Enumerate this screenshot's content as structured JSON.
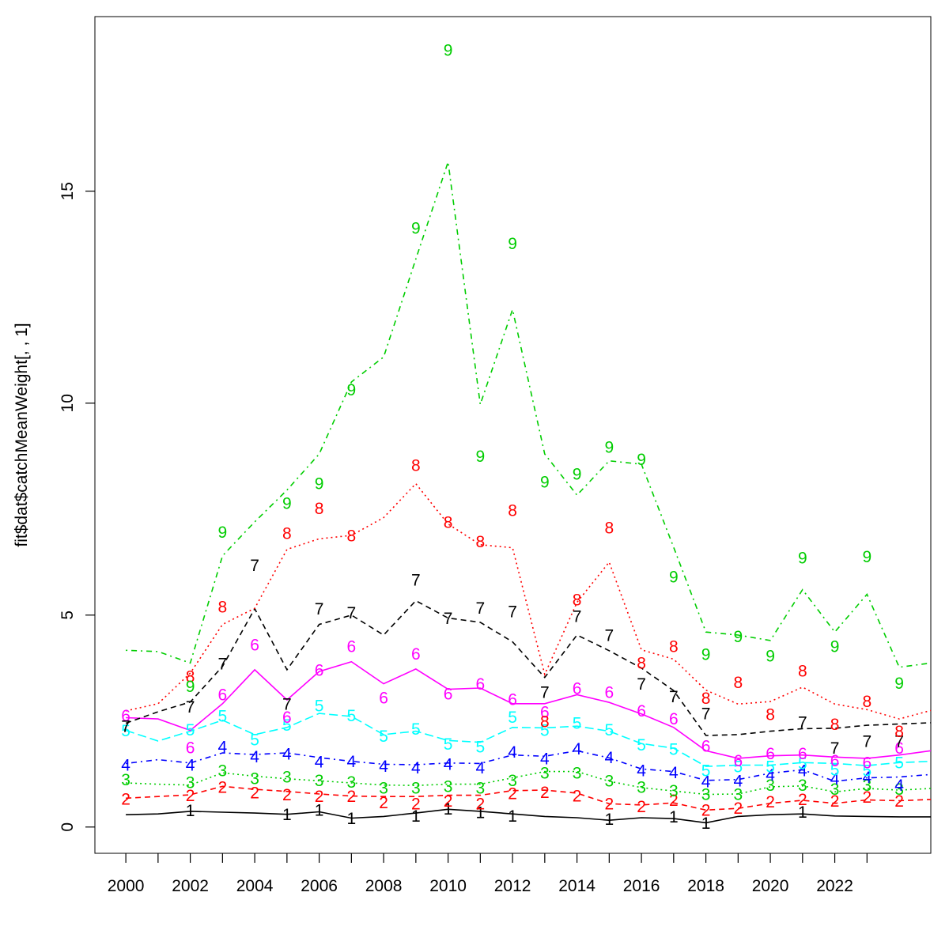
{
  "chart_data": {
    "type": "line",
    "title": "",
    "xlabel": "",
    "ylabel": "fit$dat$catchMeanWeight[, , 1]",
    "grid": false,
    "legend_position": "none",
    "xlim": [
      1999.04,
      2024.98
    ],
    "ylim": [
      -0.62,
      19.12
    ],
    "y_ticks": [
      0,
      5,
      10,
      15
    ],
    "x_tick_years": [
      2000,
      2001,
      2002,
      2003,
      2004,
      2005,
      2006,
      2007,
      2008,
      2009,
      2010,
      2011,
      2012,
      2013,
      2014,
      2015,
      2016,
      2017,
      2018,
      2019,
      2020,
      2021,
      2022,
      2023
    ],
    "x_labeled_years": [
      2000,
      2002,
      2004,
      2006,
      2008,
      2010,
      2012,
      2014,
      2016,
      2018,
      2020,
      2022
    ],
    "x": [
      2000,
      2001,
      2002,
      2003,
      2004,
      2005,
      2006,
      2007,
      2008,
      2009,
      2010,
      2011,
      2012,
      2013,
      2014,
      2015,
      2016,
      2017,
      2018,
      2019,
      2020,
      2021,
      2022,
      2023,
      2024
    ],
    "series": [
      {
        "name": "age-1",
        "label": "1",
        "color": "#000000",
        "dash": "solid",
        "obs": [
          null,
          null,
          0.4,
          null,
          null,
          0.3,
          0.41,
          0.21,
          null,
          0.27,
          0.43,
          0.35,
          0.27,
          null,
          null,
          0.19,
          null,
          0.25,
          0.1,
          null,
          null,
          0.36,
          null,
          null,
          null
        ],
        "fit": [
          0.29,
          0.31,
          0.37,
          0.35,
          0.33,
          0.3,
          0.36,
          0.21,
          0.25,
          0.33,
          0.42,
          0.37,
          0.31,
          0.25,
          0.22,
          0.16,
          0.22,
          0.2,
          0.1,
          0.25,
          0.29,
          0.31,
          0.26,
          0.25,
          0.24
        ],
        "fit_edge": 0.24
      },
      {
        "name": "age-2",
        "label": "2",
        "color": "#FF0000",
        "dash": "dashed",
        "obs": [
          0.67,
          null,
          0.75,
          0.95,
          0.82,
          0.77,
          0.73,
          0.73,
          0.58,
          0.56,
          0.62,
          0.56,
          0.8,
          0.83,
          0.74,
          0.56,
          0.49,
          0.64,
          0.41,
          0.45,
          0.6,
          0.66,
          0.62,
          0.71,
          0.62
        ],
        "fit": [
          0.68,
          0.72,
          0.76,
          0.96,
          0.89,
          0.84,
          0.78,
          0.73,
          0.72,
          0.72,
          0.75,
          0.75,
          0.86,
          0.87,
          0.8,
          0.55,
          0.52,
          0.57,
          0.4,
          0.44,
          0.56,
          0.63,
          0.56,
          0.64,
          0.62
        ],
        "fit_edge": 0.65
      },
      {
        "name": "age-3",
        "label": "3",
        "color": "#00CD00",
        "dash": "dotted",
        "obs": [
          1.12,
          null,
          1.06,
          1.34,
          1.15,
          1.19,
          1.11,
          1.07,
          0.93,
          0.93,
          0.97,
          0.93,
          1.11,
          1.28,
          1.28,
          1.1,
          0.95,
          0.86,
          0.78,
          0.78,
          0.99,
          0.99,
          0.9,
          0.99,
          0.9
        ],
        "fit": [
          1.04,
          1.01,
          0.99,
          1.28,
          1.2,
          1.14,
          1.09,
          1.04,
          0.99,
          0.98,
          1.01,
          1.01,
          1.16,
          1.31,
          1.31,
          1.08,
          0.93,
          0.85,
          0.77,
          0.78,
          0.95,
          0.97,
          0.83,
          0.91,
          0.87
        ],
        "fit_edge": 0.91
      },
      {
        "name": "age-4",
        "label": "4",
        "color": "#0000FF",
        "dash": "dashdot",
        "obs": [
          1.47,
          null,
          1.47,
          1.9,
          1.67,
          1.73,
          1.54,
          1.55,
          1.44,
          1.4,
          1.49,
          1.4,
          1.78,
          1.62,
          1.85,
          1.65,
          1.34,
          1.29,
          1.08,
          1.1,
          1.24,
          1.34,
          1.14,
          1.18,
          0.99
        ],
        "fit": [
          1.5,
          1.59,
          1.51,
          1.75,
          1.71,
          1.75,
          1.64,
          1.55,
          1.48,
          1.47,
          1.51,
          1.5,
          1.7,
          1.67,
          1.8,
          1.63,
          1.37,
          1.31,
          1.1,
          1.12,
          1.27,
          1.35,
          1.08,
          1.16,
          1.18
        ],
        "fit_edge": 1.24
      },
      {
        "name": "age-5",
        "label": "5",
        "color": "#00FFFF",
        "dash": "longdash",
        "obs": [
          2.28,
          null,
          2.3,
          2.63,
          2.07,
          2.41,
          2.87,
          2.64,
          2.15,
          2.32,
          1.96,
          1.9,
          2.6,
          2.29,
          2.46,
          2.3,
          1.95,
          1.84,
          1.34,
          1.43,
          1.43,
          1.51,
          1.36,
          1.34,
          1.53
        ],
        "fit": [
          2.28,
          2.03,
          2.26,
          2.52,
          2.18,
          2.35,
          2.68,
          2.61,
          2.18,
          2.26,
          2.04,
          2.0,
          2.35,
          2.34,
          2.38,
          2.26,
          1.97,
          1.86,
          1.43,
          1.46,
          1.46,
          1.52,
          1.5,
          1.45,
          1.52
        ],
        "fit_edge": 1.55
      },
      {
        "name": "age-6",
        "label": "6",
        "color": "#FF00FF",
        "dash": "solid",
        "obs": [
          2.64,
          null,
          1.88,
          3.13,
          4.31,
          2.6,
          3.71,
          4.27,
          3.06,
          4.09,
          3.15,
          3.38,
          3.02,
          2.72,
          3.28,
          3.19,
          2.75,
          2.56,
          1.92,
          1.57,
          1.74,
          1.74,
          1.57,
          1.53,
          1.87
        ],
        "fit": [
          2.58,
          2.55,
          2.28,
          2.91,
          3.71,
          3.0,
          3.67,
          3.9,
          3.38,
          3.73,
          3.25,
          3.28,
          2.91,
          2.91,
          3.12,
          2.94,
          2.67,
          2.35,
          1.8,
          1.62,
          1.68,
          1.7,
          1.65,
          1.62,
          1.7
        ],
        "fit_edge": 1.8
      },
      {
        "name": "age-7",
        "label": "7",
        "color": "#000000",
        "dash": "dashed",
        "obs": [
          2.38,
          null,
          2.84,
          3.86,
          6.18,
          2.91,
          5.15,
          5.06,
          null,
          5.84,
          4.93,
          5.17,
          5.09,
          3.19,
          4.98,
          4.53,
          3.38,
          3.08,
          2.68,
          null,
          null,
          2.48,
          1.87,
          2.03,
          2.03
        ],
        "fit": [
          2.45,
          2.72,
          2.95,
          3.79,
          5.15,
          3.71,
          4.78,
          5.0,
          4.53,
          5.34,
          4.93,
          4.83,
          4.37,
          3.53,
          4.53,
          4.16,
          3.75,
          3.22,
          2.16,
          2.18,
          2.26,
          2.32,
          2.33,
          2.4,
          2.43
        ],
        "fit_edge": 2.46
      },
      {
        "name": "age-8",
        "label": "8",
        "color": "#FF0000",
        "dash": "dotted",
        "obs": [
          null,
          null,
          3.56,
          5.2,
          null,
          6.94,
          7.52,
          6.88,
          null,
          8.54,
          7.2,
          6.74,
          7.48,
          2.5,
          5.37,
          7.07,
          3.88,
          4.27,
          3.05,
          3.42,
          2.66,
          3.69,
          2.43,
          2.97,
          2.26
        ],
        "fit": [
          2.74,
          2.91,
          3.63,
          4.78,
          5.16,
          6.55,
          6.8,
          6.88,
          7.3,
          8.1,
          7.15,
          6.66,
          6.59,
          3.6,
          5.3,
          6.25,
          4.18,
          3.96,
          3.23,
          2.9,
          2.96,
          3.3,
          2.9,
          2.77,
          2.55
        ],
        "fit_edge": 2.75
      },
      {
        "name": "age-9",
        "label": "9",
        "color": "#00CD00",
        "dash": "dashdot",
        "obs": [
          null,
          null,
          3.33,
          6.96,
          null,
          7.65,
          8.11,
          10.32,
          null,
          14.14,
          18.34,
          8.76,
          13.77,
          8.15,
          8.34,
          8.97,
          8.68,
          5.91,
          4.08,
          4.5,
          4.04,
          6.36,
          4.27,
          6.39,
          3.4
        ],
        "fit": [
          4.17,
          4.14,
          3.87,
          6.4,
          7.2,
          7.95,
          8.8,
          10.5,
          11.09,
          13.4,
          15.69,
          9.97,
          12.21,
          8.8,
          7.83,
          8.64,
          8.56,
          6.6,
          4.6,
          4.53,
          4.4,
          5.6,
          4.6,
          5.49,
          3.77
        ],
        "fit_edge": 3.87
      }
    ]
  }
}
